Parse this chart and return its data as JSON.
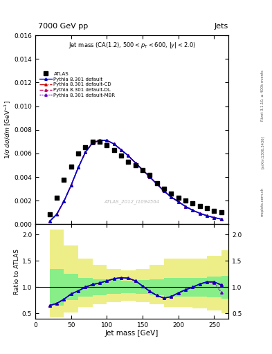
{
  "title_left": "7000 GeV pp",
  "title_right": "Jets",
  "watermark": "ATLAS_2012_I1094564",
  "xlabel": "Jet mass [GeV]",
  "ylabel_ratio": "Ratio to ATLAS",
  "xlim": [
    0,
    270
  ],
  "ylim_main": [
    0,
    0.016
  ],
  "ylim_ratio": [
    0.4,
    2.2
  ],
  "atlas_x": [
    20,
    30,
    40,
    50,
    60,
    70,
    80,
    90,
    100,
    110,
    120,
    130,
    140,
    150,
    160,
    170,
    180,
    190,
    200,
    210,
    220,
    230,
    240,
    250,
    260
  ],
  "atlas_y": [
    0.00085,
    0.00225,
    0.00375,
    0.0049,
    0.006,
    0.0065,
    0.007,
    0.007,
    0.0067,
    0.0063,
    0.0058,
    0.0053,
    0.005,
    0.0046,
    0.0042,
    0.0035,
    0.003,
    0.0026,
    0.00225,
    0.002,
    0.0018,
    0.00155,
    0.00135,
    0.00115,
    0.001
  ],
  "pythia_default_x": [
    20,
    30,
    40,
    50,
    60,
    70,
    80,
    90,
    100,
    110,
    120,
    130,
    140,
    150,
    160,
    170,
    180,
    190,
    200,
    210,
    220,
    230,
    240,
    250,
    260
  ],
  "pythia_default_y": [
    0.00025,
    0.00085,
    0.00195,
    0.0033,
    0.0048,
    0.0061,
    0.0069,
    0.0071,
    0.0071,
    0.0068,
    0.0063,
    0.0058,
    0.0052,
    0.0046,
    0.004,
    0.0034,
    0.0028,
    0.0023,
    0.0019,
    0.0015,
    0.00118,
    0.00092,
    0.00072,
    0.00056,
    0.00043
  ],
  "pythia_cd_x": [
    20,
    30,
    40,
    50,
    60,
    70,
    80,
    90,
    100,
    110,
    120,
    130,
    140,
    150,
    160,
    170,
    180,
    190,
    200,
    210,
    220,
    230,
    240,
    250,
    260
  ],
  "pythia_cd_y": [
    0.00025,
    0.00085,
    0.00195,
    0.0033,
    0.0048,
    0.0061,
    0.0069,
    0.0071,
    0.0071,
    0.0068,
    0.0063,
    0.0058,
    0.0052,
    0.0046,
    0.004,
    0.0034,
    0.0028,
    0.0023,
    0.0019,
    0.0015,
    0.00118,
    0.00092,
    0.00072,
    0.00056,
    0.00043
  ],
  "pythia_dl_x": [
    20,
    30,
    40,
    50,
    60,
    70,
    80,
    90,
    100,
    110,
    120,
    130,
    140,
    150,
    160,
    170,
    180,
    190,
    200,
    210,
    220,
    230,
    240,
    250,
    260
  ],
  "pythia_dl_y": [
    0.00025,
    0.00085,
    0.00195,
    0.0033,
    0.0048,
    0.0061,
    0.0069,
    0.0071,
    0.0071,
    0.0068,
    0.0063,
    0.0058,
    0.0052,
    0.0046,
    0.004,
    0.0034,
    0.0028,
    0.0023,
    0.0019,
    0.0015,
    0.00118,
    0.00092,
    0.00072,
    0.00056,
    0.00043
  ],
  "pythia_mbr_x": [
    20,
    30,
    40,
    50,
    60,
    70,
    80,
    90,
    100,
    110,
    120,
    130,
    140,
    150,
    160,
    170,
    180,
    190,
    200,
    210,
    220,
    230,
    240,
    250,
    260
  ],
  "pythia_mbr_y": [
    0.00025,
    0.00085,
    0.00195,
    0.0033,
    0.0048,
    0.0061,
    0.0069,
    0.0071,
    0.0071,
    0.0068,
    0.0063,
    0.0058,
    0.0052,
    0.0046,
    0.004,
    0.0034,
    0.0028,
    0.0023,
    0.0019,
    0.0015,
    0.00118,
    0.00092,
    0.00072,
    0.00056,
    0.00043
  ],
  "ratio_default_x": [
    20,
    30,
    40,
    50,
    60,
    70,
    80,
    90,
    100,
    110,
    120,
    130,
    140,
    150,
    160,
    170,
    180,
    190,
    200,
    210,
    220,
    230,
    240,
    250,
    260
  ],
  "ratio_default_y": [
    0.65,
    0.69,
    0.77,
    0.87,
    0.93,
    1.0,
    1.05,
    1.08,
    1.12,
    1.16,
    1.18,
    1.17,
    1.12,
    1.02,
    0.92,
    0.84,
    0.79,
    0.82,
    0.89,
    0.95,
    1.0,
    1.06,
    1.1,
    1.1,
    1.04
  ],
  "ratio_cd_x": [
    20,
    30,
    40,
    50,
    60,
    70,
    80,
    90,
    100,
    110,
    120,
    130,
    140,
    150,
    160,
    170,
    180,
    190,
    200,
    210,
    220,
    230,
    240,
    250,
    260
  ],
  "ratio_cd_y": [
    0.65,
    0.69,
    0.77,
    0.87,
    0.93,
    1.0,
    1.05,
    1.08,
    1.12,
    1.16,
    1.18,
    1.17,
    1.12,
    1.02,
    0.92,
    0.84,
    0.79,
    0.82,
    0.89,
    0.95,
    1.0,
    1.06,
    1.1,
    1.1,
    1.04
  ],
  "ratio_dl_x": [
    20,
    30,
    40,
    50,
    60,
    70,
    80,
    90,
    100,
    110,
    120,
    130,
    140,
    150,
    160,
    170,
    180,
    190,
    200,
    210,
    220,
    230,
    240,
    250,
    260
  ],
  "ratio_dl_y": [
    0.65,
    0.69,
    0.77,
    0.87,
    0.93,
    1.0,
    1.05,
    1.08,
    1.12,
    1.16,
    1.18,
    1.17,
    1.12,
    1.02,
    0.92,
    0.84,
    0.79,
    0.82,
    0.89,
    0.95,
    1.0,
    1.06,
    1.1,
    1.1,
    1.04
  ],
  "ratio_mbr_x": [
    20,
    30,
    40,
    50,
    60,
    70,
    80,
    90,
    100,
    110,
    120,
    130,
    140,
    150,
    160,
    170,
    180,
    190,
    200,
    210,
    220,
    230,
    240,
    250,
    260
  ],
  "ratio_mbr_y": [
    0.65,
    0.69,
    0.77,
    0.87,
    0.93,
    1.0,
    1.05,
    1.08,
    1.12,
    1.16,
    1.18,
    1.17,
    1.12,
    1.02,
    0.92,
    0.84,
    0.79,
    0.82,
    0.89,
    0.95,
    1.0,
    1.06,
    1.1,
    1.08,
    0.9
  ],
  "green_bins_x": [
    20,
    40,
    60,
    80,
    100,
    120,
    140,
    160,
    180,
    220,
    240,
    260
  ],
  "green_bins_x2": [
    40,
    60,
    80,
    100,
    120,
    140,
    160,
    180,
    220,
    240,
    260,
    270
  ],
  "green_lo": [
    0.65,
    0.75,
    0.82,
    0.85,
    0.87,
    0.88,
    0.87,
    0.85,
    0.82,
    0.82,
    0.8,
    0.78
  ],
  "green_hi": [
    1.35,
    1.25,
    1.18,
    1.15,
    1.13,
    1.12,
    1.13,
    1.15,
    1.18,
    1.18,
    1.2,
    1.22
  ],
  "yellow_bins_x": [
    20,
    40,
    60,
    80,
    100,
    120,
    140,
    160,
    180,
    220,
    240,
    260
  ],
  "yellow_bins_x2": [
    40,
    60,
    80,
    100,
    120,
    140,
    160,
    180,
    220,
    240,
    260,
    270
  ],
  "yellow_lo": [
    0.42,
    0.52,
    0.62,
    0.68,
    0.72,
    0.74,
    0.72,
    0.68,
    0.62,
    0.6,
    0.55,
    0.5
  ],
  "yellow_hi": [
    2.1,
    1.8,
    1.55,
    1.42,
    1.35,
    1.32,
    1.35,
    1.42,
    1.55,
    1.55,
    1.6,
    1.7
  ],
  "color_default": "#0000cc",
  "color_cd": "#cc0000",
  "color_dl": "#cc0066",
  "color_mbr": "#6600cc",
  "color_atlas": "#000000",
  "color_yellow": "#eeee88",
  "color_green": "#88ee88",
  "bg_color": "#ffffff",
  "legend_labels": [
    "ATLAS",
    "Pythia 8.301 default",
    "Pythia 8.301 default-CD",
    "Pythia 8.301 default-DL",
    "Pythia 8.301 default-MBR"
  ],
  "right_texts": [
    "Rivet 3.1.10, ≥ 400k events",
    "[arXiv:1306.3436]",
    "mcplots.cern.ch"
  ]
}
